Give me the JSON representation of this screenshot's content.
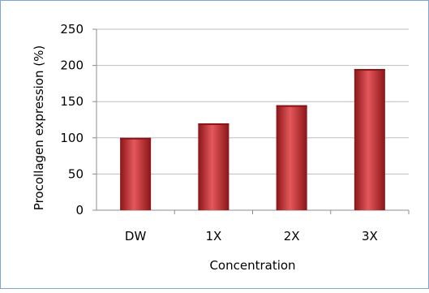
{
  "chart_data": {
    "type": "bar",
    "categories": [
      "DW",
      "1X",
      "2X",
      "3X"
    ],
    "values": [
      100,
      120,
      145,
      195
    ],
    "xlabel": "Concentration",
    "ylabel": "Procollagen expression (%)",
    "ylim": [
      0,
      250
    ],
    "yticks": [
      0,
      50,
      100,
      150,
      200,
      250
    ],
    "grid": true,
    "legend": "none",
    "colors": {
      "bar": "#c0272d",
      "bar_light": "#e4585b",
      "bar_dark": "#8a1518",
      "grid": "#bdbdbd",
      "axis": "#8c8c8c"
    }
  }
}
